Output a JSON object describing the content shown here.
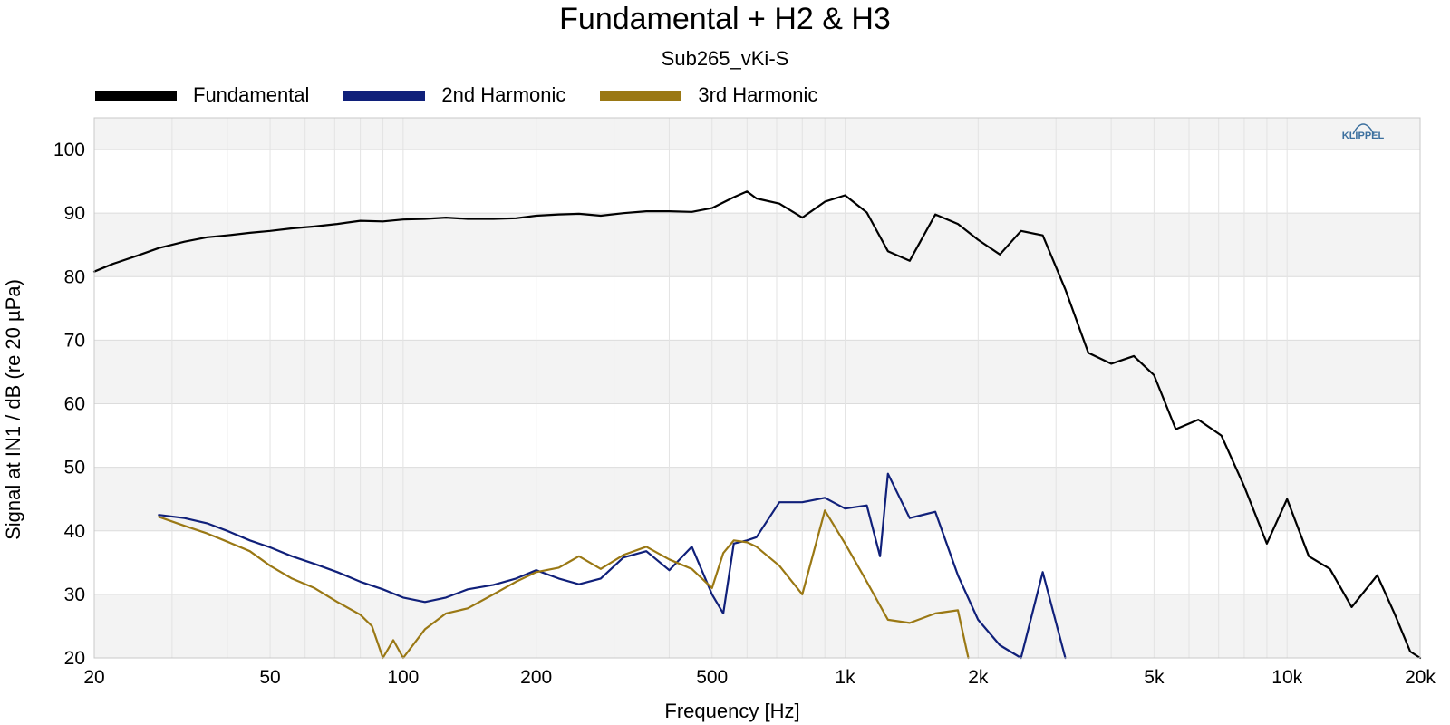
{
  "chart_data": {
    "type": "line",
    "title": "Fundamental + H2 & H3",
    "subtitle": "Sub265_vKi-S",
    "xlabel": "Frequency [Hz]",
    "ylabel": "Signal at IN1 / dB (re 20 µPa)",
    "x_scale": "log",
    "xlim": [
      20,
      20000
    ],
    "ylim": [
      20,
      105
    ],
    "x_ticks": [
      20,
      50,
      100,
      200,
      500,
      1000,
      2000,
      5000,
      10000,
      20000
    ],
    "x_tick_labels": [
      "20",
      "50",
      "100",
      "200",
      "500",
      "1k",
      "2k",
      "5k",
      "10k",
      "20k"
    ],
    "y_ticks": [
      20,
      30,
      40,
      50,
      60,
      70,
      80,
      90,
      100
    ],
    "y_tick_labels": [
      "20",
      "30",
      "40",
      "50",
      "60",
      "70",
      "80",
      "90",
      "100"
    ],
    "grid": true,
    "legend_position": "top-left",
    "brand": "KLIPPEL",
    "series": [
      {
        "name": "Fundamental",
        "color": "#000000",
        "x": [
          20,
          22,
          25,
          28,
          32,
          36,
          40,
          45,
          50,
          56,
          63,
          71,
          80,
          90,
          100,
          112,
          125,
          140,
          160,
          180,
          200,
          225,
          250,
          280,
          315,
          355,
          400,
          450,
          500,
          560,
          600,
          630,
          710,
          800,
          900,
          1000,
          1120,
          1250,
          1400,
          1600,
          1800,
          2000,
          2240,
          2500,
          2800,
          3150,
          3550,
          4000,
          4500,
          5000,
          5600,
          6300,
          7100,
          8000,
          9000,
          10000,
          11200,
          12500,
          14000,
          16000,
          17500,
          19000,
          20000
        ],
        "y": [
          80.8,
          82,
          83.3,
          84.5,
          85.5,
          86.2,
          86.5,
          86.9,
          87.2,
          87.6,
          87.9,
          88.3,
          88.8,
          88.7,
          89,
          89.1,
          89.3,
          89.1,
          89.1,
          89.2,
          89.6,
          89.8,
          89.9,
          89.6,
          90,
          90.3,
          90.3,
          90.2,
          90.8,
          92.5,
          93.4,
          92.3,
          91.5,
          89.3,
          91.8,
          92.8,
          90.1,
          84,
          82.5,
          89.8,
          88.3,
          85.8,
          83.5,
          87.2,
          86.5,
          78,
          68,
          66.3,
          67.5,
          64.5,
          56,
          57.5,
          55,
          47,
          38,
          45,
          36,
          34,
          28,
          33,
          27,
          21,
          20
        ]
      },
      {
        "name": "2nd Harmonic",
        "color": "#10207a",
        "x": [
          28,
          32,
          36,
          40,
          45,
          50,
          56,
          63,
          71,
          80,
          90,
          100,
          112,
          125,
          140,
          160,
          180,
          200,
          225,
          250,
          280,
          315,
          355,
          400,
          450,
          500,
          530,
          560,
          600,
          630,
          710,
          800,
          900,
          1000,
          1120,
          1200,
          1250,
          1400,
          1600,
          1800,
          2000,
          2240,
          2500,
          2800,
          3150
        ],
        "y": [
          42.5,
          42,
          41.2,
          40,
          38.5,
          37.4,
          36,
          34.8,
          33.5,
          32,
          30.8,
          29.5,
          28.8,
          29.5,
          30.8,
          31.5,
          32.5,
          33.8,
          32.5,
          31.6,
          32.5,
          35.8,
          36.8,
          33.8,
          37.5,
          30,
          27,
          38,
          38.5,
          39,
          44.5,
          44.5,
          45.2,
          43.5,
          44,
          36,
          49,
          42,
          43,
          33,
          26,
          22,
          20,
          33.5,
          20
        ]
      },
      {
        "name": "3rd Harmonic",
        "color": "#9a7814",
        "x": [
          28,
          32,
          36,
          40,
          45,
          50,
          56,
          63,
          71,
          80,
          85,
          90,
          95,
          100,
          112,
          125,
          140,
          160,
          180,
          200,
          225,
          250,
          280,
          315,
          355,
          400,
          450,
          500,
          530,
          560,
          600,
          630,
          710,
          800,
          900,
          1000,
          1120,
          1250,
          1400,
          1600,
          1800,
          1900
        ],
        "y": [
          42.2,
          40.8,
          39.6,
          38.3,
          36.8,
          34.5,
          32.5,
          31,
          28.8,
          26.8,
          25,
          19.5,
          22.8,
          20,
          24.5,
          27,
          27.8,
          30,
          32,
          33.5,
          34.2,
          36,
          34,
          36.2,
          37.5,
          35.5,
          34,
          31,
          36.5,
          38.5,
          38.2,
          37.5,
          34.5,
          30,
          43.2,
          38,
          32,
          26,
          25.5,
          27,
          27.5,
          20
        ]
      }
    ]
  }
}
